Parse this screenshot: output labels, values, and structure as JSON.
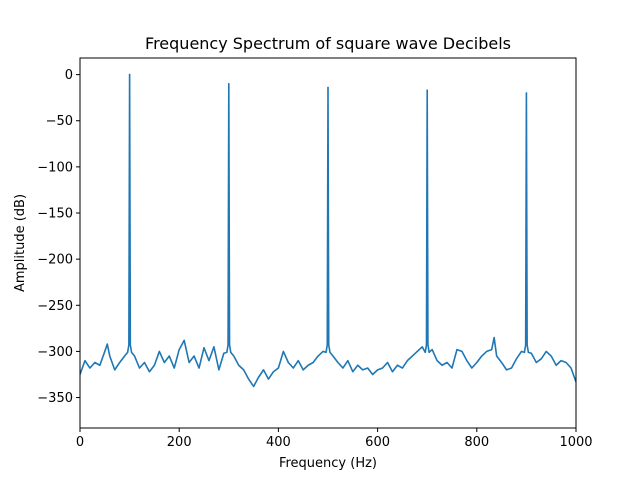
{
  "chart_data": {
    "type": "line",
    "title": "Frequency Spectrum of square wave Decibels",
    "xlabel": "Frequency (Hz)",
    "ylabel": "Amplitude (dB)",
    "xlim": [
      0,
      1000
    ],
    "ylim": [
      -383,
      18
    ],
    "xticks": [
      0,
      200,
      400,
      600,
      800,
      1000
    ],
    "xtick_labels": [
      "0",
      "200",
      "400",
      "600",
      "800",
      "1000"
    ],
    "yticks": [
      0,
      -50,
      -100,
      -150,
      -200,
      -250,
      -300,
      -350
    ],
    "ytick_labels": [
      "0",
      "−50",
      "−100",
      "−150",
      "−200",
      "−250",
      "−300",
      "−350"
    ],
    "grid": false,
    "line_color": "#1f77b4",
    "series": [
      {
        "name": "spectrum",
        "noise_floor_x": [
          0,
          10,
          20,
          30,
          40,
          50,
          55,
          60,
          70,
          80,
          90,
          110,
          120,
          130,
          140,
          150,
          160,
          170,
          180,
          190,
          200,
          210,
          220,
          230,
          240,
          250,
          260,
          270,
          280,
          290,
          310,
          320,
          330,
          340,
          350,
          360,
          370,
          380,
          390,
          400,
          410,
          420,
          430,
          440,
          450,
          460,
          470,
          480,
          490,
          510,
          520,
          530,
          540,
          550,
          560,
          570,
          580,
          590,
          600,
          610,
          620,
          630,
          640,
          650,
          660,
          670,
          680,
          690,
          710,
          720,
          730,
          740,
          750,
          760,
          770,
          780,
          790,
          800,
          810,
          820,
          830,
          835,
          840,
          850,
          860,
          870,
          880,
          890,
          910,
          920,
          930,
          940,
          950,
          960,
          970,
          980,
          990,
          1000
        ],
        "noise_floor_y": [
          -325,
          -310,
          -318,
          -312,
          -315,
          -300,
          -292,
          -305,
          -320,
          -312,
          -305,
          -305,
          -318,
          -312,
          -322,
          -315,
          -300,
          -312,
          -305,
          -318,
          -298,
          -288,
          -312,
          -305,
          -318,
          -296,
          -310,
          -295,
          -320,
          -302,
          -305,
          -315,
          -320,
          -330,
          -338,
          -328,
          -320,
          -330,
          -322,
          -318,
          -300,
          -312,
          -318,
          -310,
          -320,
          -315,
          -312,
          -305,
          -300,
          -305,
          -312,
          -318,
          -310,
          -322,
          -315,
          -320,
          -318,
          -325,
          -320,
          -318,
          -312,
          -322,
          -315,
          -318,
          -310,
          -305,
          -300,
          -295,
          -298,
          -310,
          -315,
          -312,
          -318,
          -298,
          -300,
          -310,
          -318,
          -312,
          -305,
          -300,
          -298,
          -285,
          -305,
          -312,
          -320,
          -318,
          -308,
          -300,
          -302,
          -312,
          -308,
          -300,
          -305,
          -315,
          -310,
          -312,
          -318,
          -333
        ],
        "peaks": [
          {
            "x": 100,
            "y": 0
          },
          {
            "x": 300,
            "y": -10
          },
          {
            "x": 500,
            "y": -14
          },
          {
            "x": 700,
            "y": -17
          },
          {
            "x": 900,
            "y": -20
          }
        ],
        "peak_base": -293
      }
    ]
  }
}
